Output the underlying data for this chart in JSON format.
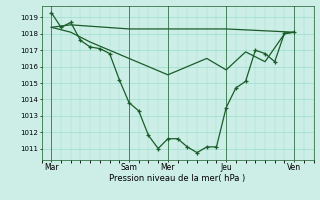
{
  "xlabel": "Pression niveau de la mer( hPa )",
  "ylim": [
    1010.3,
    1019.7
  ],
  "yticks": [
    1011,
    1012,
    1013,
    1014,
    1015,
    1016,
    1017,
    1018,
    1019
  ],
  "xlim": [
    0,
    14.0
  ],
  "background_color": "#cceee6",
  "grid_color": "#99ddcc",
  "line_color": "#1a5c2a",
  "day_labels": [
    "Mar",
    "Sam",
    "Mer",
    "Jeu",
    "Ven"
  ],
  "day_positions": [
    0.5,
    4.5,
    6.5,
    9.5,
    13.0
  ],
  "vline_positions": [
    0.5,
    4.5,
    6.5,
    9.5,
    13.0
  ],
  "series1_x": [
    0.5,
    1.0,
    1.5,
    2.0,
    2.5,
    3.0,
    3.5,
    4.0,
    4.5,
    5.0,
    5.5,
    6.0,
    6.5,
    7.0,
    7.5,
    8.0,
    8.5,
    9.0,
    9.5,
    10.0,
    10.5,
    11.0,
    11.5,
    12.0,
    12.5,
    13.0
  ],
  "series1_y": [
    1019.3,
    1018.4,
    1018.7,
    1017.6,
    1017.2,
    1017.1,
    1016.8,
    1015.2,
    1013.8,
    1013.3,
    1011.8,
    1011.0,
    1011.6,
    1011.6,
    1011.1,
    1010.75,
    1011.1,
    1011.1,
    1013.5,
    1014.7,
    1015.1,
    1017.0,
    1016.8,
    1016.3,
    1018.05,
    1018.1
  ],
  "series2_x": [
    0.5,
    1.5,
    4.5,
    6.0,
    9.5,
    13.0
  ],
  "series2_y": [
    1018.4,
    1018.55,
    1018.3,
    1018.3,
    1018.3,
    1018.1
  ],
  "series3_x": [
    0.5,
    1.5,
    2.5,
    3.5,
    4.5,
    5.5,
    6.5,
    7.5,
    8.5,
    9.5,
    10.5,
    11.5,
    12.5,
    13.0
  ],
  "series3_y": [
    1018.4,
    1018.1,
    1017.5,
    1017.0,
    1016.5,
    1016.0,
    1015.5,
    1016.0,
    1016.5,
    1015.8,
    1016.9,
    1016.3,
    1018.0,
    1018.1
  ]
}
